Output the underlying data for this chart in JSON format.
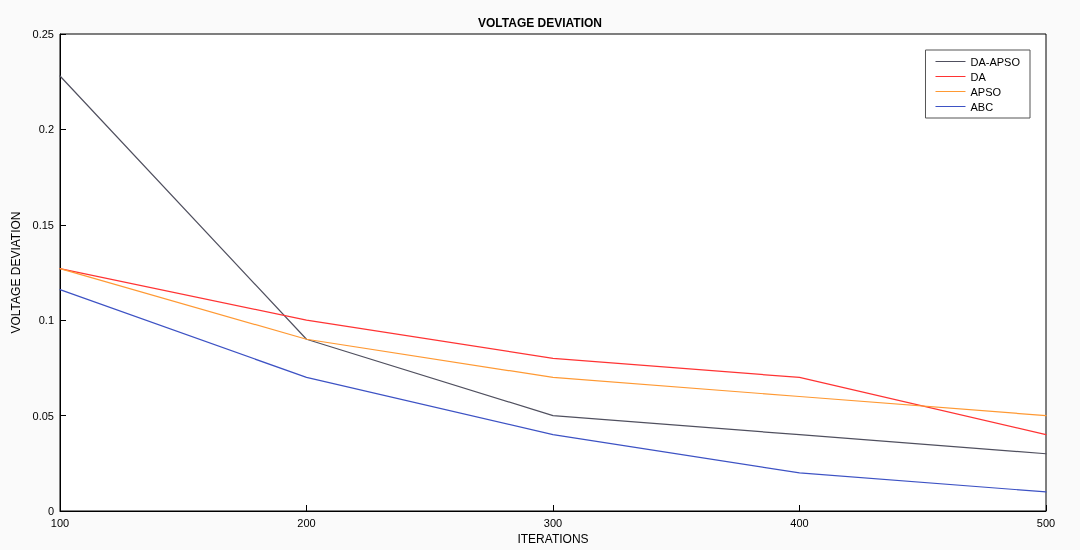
{
  "chart_data": {
    "type": "line",
    "title": "VOLTAGE DEVIATION",
    "xlabel": "ITERATIONS",
    "ylabel": "VOLTAGE DEVIATION",
    "x": [
      100,
      200,
      300,
      400,
      500
    ],
    "series": [
      {
        "name": "DA-APSO",
        "color": "#50505f",
        "values": [
          0.228,
          0.09,
          0.05,
          0.04,
          0.03
        ]
      },
      {
        "name": "DA",
        "color": "#ff3333",
        "values": [
          0.127,
          0.1,
          0.08,
          0.07,
          0.04
        ]
      },
      {
        "name": "APSO",
        "color": "#ff9933",
        "values": [
          0.127,
          0.09,
          0.07,
          0.06,
          0.05
        ]
      },
      {
        "name": "ABC",
        "color": "#3d52c4",
        "values": [
          0.116,
          0.07,
          0.04,
          0.02,
          0.01
        ]
      }
    ],
    "xlim": [
      100,
      500
    ],
    "xticks": [
      100,
      200,
      300,
      400,
      500
    ],
    "ylim": [
      0,
      0.25
    ],
    "yticks": [
      0,
      0.05,
      0.1,
      0.15,
      0.2,
      0.25
    ],
    "grid": false,
    "legend": "top right",
    "marker": "none",
    "line_style": "solid"
  }
}
